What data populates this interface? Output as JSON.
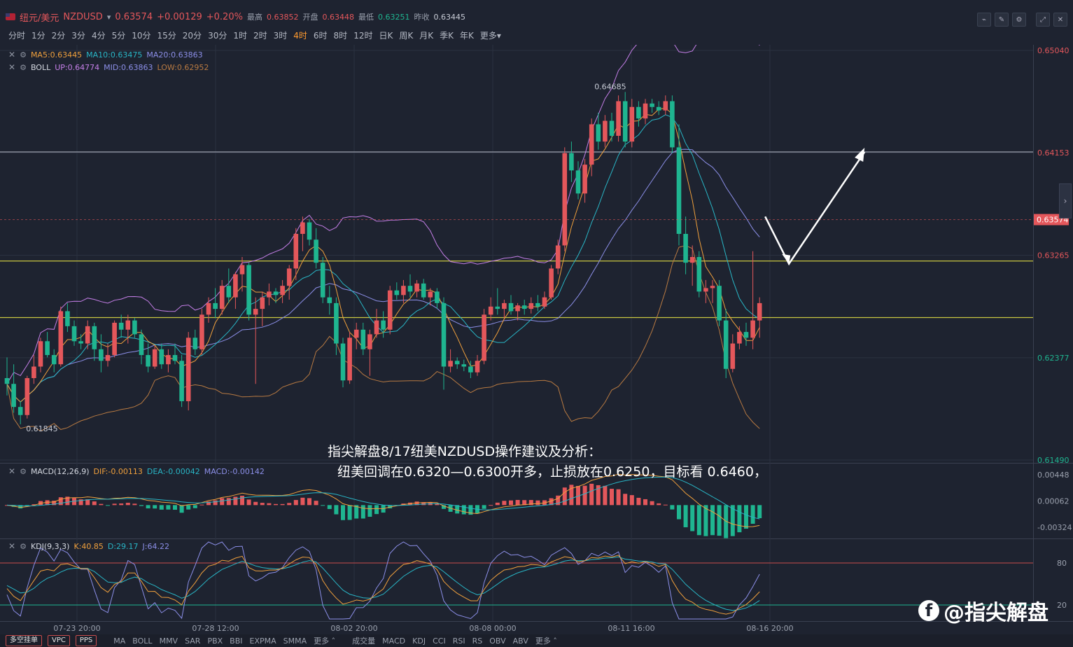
{
  "header": {
    "symbol_name": "纽元/美元",
    "symbol_code": "NZDUSD",
    "last": "0.63574",
    "change": "+0.00129",
    "change_pct": "+0.20%",
    "high_label": "最高",
    "high": "0.63852",
    "open_label": "开盘",
    "open": "0.63448",
    "low_label": "最低",
    "low": "0.63251",
    "prev_label": "昨收",
    "prev": "0.63445"
  },
  "periods": [
    "分时",
    "1分",
    "2分",
    "3分",
    "4分",
    "5分",
    "10分",
    "15分",
    "20分",
    "30分",
    "1时",
    "2时",
    "3时",
    "4时",
    "6时",
    "8时",
    "12时",
    "日K",
    "周K",
    "月K",
    "季K",
    "年K",
    "更多"
  ],
  "active_period": "4时",
  "legends": {
    "ma": {
      "label": "MA5:0.63445",
      "ma10": "MA10:0.63475",
      "ma20": "MA20:0.63863"
    },
    "boll": {
      "label": "BOLL",
      "up": "UP:0.64774",
      "mid": "MID:0.63863",
      "low": "LOW:0.62952"
    },
    "macd": {
      "label": "MACD(12,26,9)",
      "dif": "DIF:-0.00113",
      "dea": "DEA:-0.00042",
      "macd": "MACD:-0.00142"
    },
    "kdj": {
      "label": "KDJ(9,3,3)",
      "k": "K:40.85",
      "d": "D:29.17",
      "j": "J:64.22"
    }
  },
  "colors": {
    "up": "#e4575b",
    "down": "#1fb590",
    "ma5": "#f0a03c",
    "ma10": "#29b6c6",
    "ma20": "#8c8fe8",
    "boll_up": "#c57fe8",
    "boll_low": "#b87a42",
    "hline_gray": "#9aa0ad",
    "hline_yellow": "#c9c640"
  },
  "annotation": {
    "line1": "指尖解盘8/17纽美NZDUSD操作建议及分析：",
    "line2": "纽美回调在0.6320—0.6300开多，止损放在0.6250，目标看 0.6460，"
  },
  "watermark": "@指尖解盘",
  "watermark_icon": "facebook-icon",
  "price_labels": {
    "max_marker": "0.64685",
    "min_marker": "0.61845",
    "current": "0.63574"
  },
  "bottombar": {
    "buttons": [
      "多空挂单",
      "VPC",
      "PPS"
    ],
    "main_inds": [
      "MA",
      "BOLL",
      "MMV",
      "SAR",
      "PBX",
      "BBI",
      "EXPMA",
      "SMMA",
      "更多"
    ],
    "sub_inds": [
      "成交量",
      "MACD",
      "KDJ",
      "CCI",
      "RSI",
      "RS",
      "OBV",
      "ABV",
      "更多"
    ]
  },
  "chart_data": [
    {
      "type": "candlestick",
      "title": "NZDUSD 4H",
      "xlabel": "",
      "ylabel": "",
      "x_ticks": [
        "07-23 20:00",
        "07-28 12:00",
        "08-02 20:00",
        "08-08 00:00",
        "08-11 16:00",
        "08-16 20:00"
      ],
      "y_ticks": [
        0.6149,
        0.62377,
        0.63265,
        0.64153,
        0.6504
      ],
      "ylim": [
        0.6149,
        0.6504
      ],
      "hlines": [
        0.6416,
        0.63215,
        0.62725
      ],
      "ohlc": [
        [
          0.622,
          0.6238,
          0.6205,
          0.6215
        ],
        [
          0.6215,
          0.6232,
          0.619,
          0.6195
        ],
        [
          0.6195,
          0.62,
          0.618,
          0.6188
        ],
        [
          0.6188,
          0.6222,
          0.6185,
          0.622
        ],
        [
          0.622,
          0.624,
          0.6215,
          0.623
        ],
        [
          0.623,
          0.6255,
          0.6225,
          0.6252
        ],
        [
          0.6252,
          0.626,
          0.6238,
          0.624
        ],
        [
          0.624,
          0.6245,
          0.6225,
          0.6232
        ],
        [
          0.6232,
          0.6282,
          0.623,
          0.6278
        ],
        [
          0.6278,
          0.6285,
          0.626,
          0.6265
        ],
        [
          0.6265,
          0.627,
          0.6248,
          0.6252
        ],
        [
          0.6252,
          0.6258,
          0.6245,
          0.625
        ],
        [
          0.625,
          0.627,
          0.6245,
          0.6265
        ],
        [
          0.6265,
          0.6268,
          0.6235,
          0.6245
        ],
        [
          0.6245,
          0.6258,
          0.6225,
          0.6235
        ],
        [
          0.6235,
          0.625,
          0.623,
          0.624
        ],
        [
          0.624,
          0.627,
          0.6238,
          0.6268
        ],
        [
          0.6268,
          0.6275,
          0.6255,
          0.6262
        ],
        [
          0.6262,
          0.6275,
          0.625,
          0.627
        ],
        [
          0.627,
          0.6272,
          0.6255,
          0.6258
        ],
        [
          0.6258,
          0.6262,
          0.6232,
          0.624
        ],
        [
          0.624,
          0.625,
          0.6225,
          0.623
        ],
        [
          0.623,
          0.6248,
          0.6228,
          0.6245
        ],
        [
          0.6245,
          0.625,
          0.6228,
          0.6232
        ],
        [
          0.6232,
          0.6245,
          0.6225,
          0.624
        ],
        [
          0.624,
          0.625,
          0.6232,
          0.6235
        ],
        [
          0.6235,
          0.624,
          0.6195,
          0.62
        ],
        [
          0.62,
          0.626,
          0.6192,
          0.6255
        ],
        [
          0.6255,
          0.6262,
          0.624,
          0.6245
        ],
        [
          0.6245,
          0.628,
          0.624,
          0.6275
        ],
        [
          0.6275,
          0.629,
          0.6268,
          0.6285
        ],
        [
          0.6285,
          0.6298,
          0.6272,
          0.628
        ],
        [
          0.628,
          0.6305,
          0.6275,
          0.63
        ],
        [
          0.63,
          0.6315,
          0.6285,
          0.629
        ],
        [
          0.629,
          0.6312,
          0.628,
          0.631
        ],
        [
          0.631,
          0.6325,
          0.6295,
          0.6318
        ],
        [
          0.6318,
          0.632,
          0.627,
          0.6275
        ],
        [
          0.6275,
          0.629,
          0.6215,
          0.628
        ],
        [
          0.628,
          0.6295,
          0.6265,
          0.629
        ],
        [
          0.629,
          0.6302,
          0.6283,
          0.6295
        ],
        [
          0.6295,
          0.6298,
          0.6285,
          0.6292
        ],
        [
          0.6292,
          0.6305,
          0.6285,
          0.63
        ],
        [
          0.63,
          0.6318,
          0.6288,
          0.6315
        ],
        [
          0.6315,
          0.635,
          0.6305,
          0.6345
        ],
        [
          0.6345,
          0.636,
          0.633,
          0.6355
        ],
        [
          0.6355,
          0.6358,
          0.6335,
          0.634
        ],
        [
          0.634,
          0.635,
          0.6315,
          0.632
        ],
        [
          0.632,
          0.6325,
          0.6285,
          0.629
        ],
        [
          0.629,
          0.63,
          0.6275,
          0.6285
        ],
        [
          0.6285,
          0.629,
          0.624,
          0.625
        ],
        [
          0.625,
          0.6255,
          0.6212,
          0.6218
        ],
        [
          0.6218,
          0.626,
          0.6215,
          0.6255
        ],
        [
          0.6255,
          0.6268,
          0.6245,
          0.6262
        ],
        [
          0.6262,
          0.6268,
          0.624,
          0.6245
        ],
        [
          0.6245,
          0.6262,
          0.6222,
          0.6258
        ],
        [
          0.6258,
          0.628,
          0.6255,
          0.627
        ],
        [
          0.627,
          0.6278,
          0.6255,
          0.6262
        ],
        [
          0.6262,
          0.63,
          0.6258,
          0.6296
        ],
        [
          0.6296,
          0.6303,
          0.6288,
          0.6292
        ],
        [
          0.6292,
          0.6305,
          0.6285,
          0.63
        ],
        [
          0.63,
          0.631,
          0.629,
          0.6295
        ],
        [
          0.6295,
          0.6305,
          0.629,
          0.6302
        ],
        [
          0.6302,
          0.6306,
          0.6288,
          0.629
        ],
        [
          0.629,
          0.6298,
          0.6283,
          0.6295
        ],
        [
          0.6295,
          0.6298,
          0.628,
          0.6285
        ],
        [
          0.6285,
          0.629,
          0.621,
          0.623
        ],
        [
          0.623,
          0.6245,
          0.6225,
          0.6235
        ],
        [
          0.6235,
          0.6238,
          0.6228,
          0.6232
        ],
        [
          0.6232,
          0.6236,
          0.6226,
          0.623
        ],
        [
          0.623,
          0.6235,
          0.622,
          0.6225
        ],
        [
          0.6225,
          0.624,
          0.6222,
          0.6235
        ],
        [
          0.6235,
          0.628,
          0.6232,
          0.6275
        ],
        [
          0.6275,
          0.629,
          0.627,
          0.6282
        ],
        [
          0.6282,
          0.6298,
          0.6275,
          0.628
        ],
        [
          0.628,
          0.6288,
          0.6272,
          0.6285
        ],
        [
          0.6285,
          0.6292,
          0.6275,
          0.6278
        ],
        [
          0.6278,
          0.6285,
          0.627,
          0.6283
        ],
        [
          0.6283,
          0.6288,
          0.6275,
          0.628
        ],
        [
          0.628,
          0.629,
          0.6276,
          0.6285
        ],
        [
          0.6285,
          0.6292,
          0.6278,
          0.6282
        ],
        [
          0.6282,
          0.6295,
          0.628,
          0.629
        ],
        [
          0.629,
          0.6318,
          0.6288,
          0.6315
        ],
        [
          0.6315,
          0.634,
          0.631,
          0.6335
        ],
        [
          0.6335,
          0.642,
          0.633,
          0.6415
        ],
        [
          0.6415,
          0.6425,
          0.639,
          0.64
        ],
        [
          0.64,
          0.6408,
          0.6375,
          0.638
        ],
        [
          0.638,
          0.641,
          0.6372,
          0.6405
        ],
        [
          0.6405,
          0.6445,
          0.6395,
          0.644
        ],
        [
          0.644,
          0.645,
          0.6418,
          0.6425
        ],
        [
          0.6425,
          0.6448,
          0.642,
          0.6443
        ],
        [
          0.6443,
          0.645,
          0.6425,
          0.643
        ],
        [
          0.643,
          0.6465,
          0.6425,
          0.646
        ],
        [
          0.646,
          0.6468,
          0.642,
          0.6425
        ],
        [
          0.6425,
          0.6462,
          0.642,
          0.6455
        ],
        [
          0.6455,
          0.646,
          0.6438,
          0.6445
        ],
        [
          0.6445,
          0.6462,
          0.644,
          0.6458
        ],
        [
          0.6458,
          0.6462,
          0.645,
          0.6455
        ],
        [
          0.6455,
          0.646,
          0.6448,
          0.6452
        ],
        [
          0.6452,
          0.6465,
          0.6448,
          0.646
        ],
        [
          0.646,
          0.6465,
          0.6415,
          0.642
        ],
        [
          0.642,
          0.644,
          0.6335,
          0.6345
        ],
        [
          0.6345,
          0.636,
          0.631,
          0.632
        ],
        [
          0.632,
          0.6335,
          0.63,
          0.6325
        ],
        [
          0.6325,
          0.633,
          0.629,
          0.6295
        ],
        [
          0.6295,
          0.6305,
          0.6285,
          0.6298
        ],
        [
          0.6298,
          0.6305,
          0.6285,
          0.63
        ],
        [
          0.63,
          0.6305,
          0.6265,
          0.627
        ],
        [
          0.627,
          0.628,
          0.622,
          0.6228
        ],
        [
          0.6228,
          0.6258,
          0.6225,
          0.625
        ],
        [
          0.625,
          0.6265,
          0.6245,
          0.626
        ],
        [
          0.626,
          0.6268,
          0.6248,
          0.6255
        ],
        [
          0.6255,
          0.633,
          0.6245,
          0.627
        ],
        [
          0.627,
          0.629,
          0.6255,
          0.6285
        ]
      ]
    },
    {
      "type": "bar",
      "title": "MACD(12,26,9)",
      "y_ticks": [
        0.00448,
        0.00062,
        -0.00324
      ],
      "ylim": [
        -0.0045,
        0.0055
      ]
    },
    {
      "type": "line",
      "title": "KDJ(9,3,3)",
      "y_ticks": [
        80,
        20
      ],
      "ylim": [
        0,
        110
      ]
    }
  ]
}
